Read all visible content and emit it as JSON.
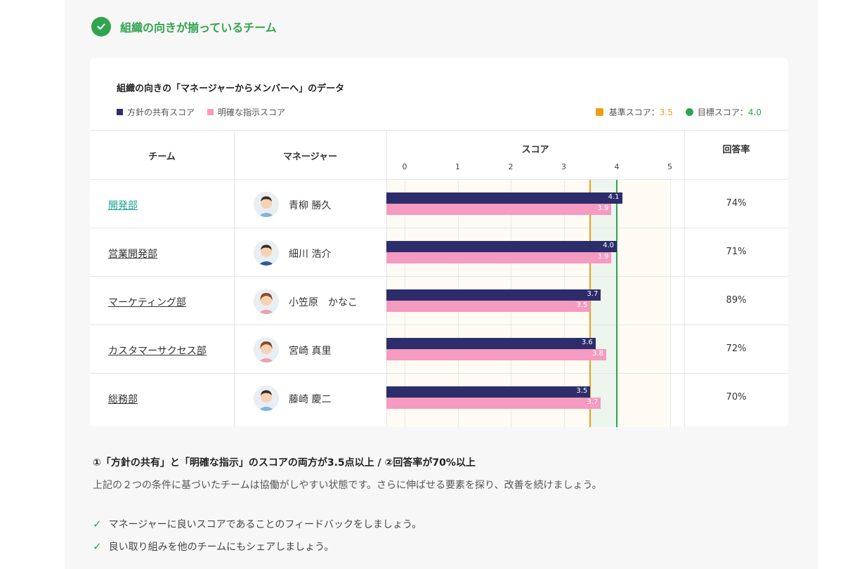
{
  "section": {
    "title": "組織の向きが揃っているチーム",
    "icon": "check-circle-icon",
    "accent": "#2fa44f"
  },
  "card": {
    "title": "組織の向きの「マネージャーからメンバーへ」のデータ",
    "legend": {
      "series1": "方針の共有スコア",
      "series2": "明確な指示スコア",
      "base_label": "基準スコア：",
      "base_value": "3.5",
      "goal_label": "目標スコア：",
      "goal_value": "4.0"
    },
    "colors": {
      "series1": "#2d2d6b",
      "series2": "#f59ac0",
      "base": "#f39c12",
      "goal": "#2fa44f",
      "goal_zone": "#ecf5ee",
      "plot_bg": "#fdfbf3"
    }
  },
  "table": {
    "headers": {
      "team": "チーム",
      "manager": "マネージャー",
      "score": "スコア",
      "rate": "回答率"
    },
    "ticks": [
      "0",
      "1",
      "2",
      "3",
      "4",
      "5"
    ],
    "rows": [
      {
        "team": "開発部",
        "manager": "青柳 勝久",
        "policy": 4.1,
        "policy_label": "4.1",
        "instruction": 3.9,
        "instruction_label": "3.9",
        "rate": "74%",
        "avatar": "male-avatar-icon"
      },
      {
        "team": "営業開発部",
        "manager": "細川 浩介",
        "policy": 4.0,
        "policy_label": "4.0",
        "instruction": 3.9,
        "instruction_label": "3.9",
        "rate": "71%",
        "avatar": "male-suit-avatar-icon"
      },
      {
        "team": "マーケティング部",
        "manager": "小笠原　かなこ",
        "policy": 3.7,
        "policy_label": "3.7",
        "instruction": 3.5,
        "instruction_label": "3.5",
        "rate": "89%",
        "avatar": "female-avatar-icon"
      },
      {
        "team": "カスタマーサクセス部",
        "manager": "宮崎 真里",
        "policy": 3.6,
        "policy_label": "3.6",
        "instruction": 3.8,
        "instruction_label": "3.8",
        "rate": "72%",
        "avatar": "female-avatar-icon"
      },
      {
        "team": "総務部",
        "manager": "藤崎 慶二",
        "policy": 3.5,
        "policy_label": "3.5",
        "instruction": 3.7,
        "instruction_label": "3.7",
        "rate": "70%",
        "avatar": "male-avatar-icon"
      }
    ]
  },
  "chart_data": {
    "type": "bar",
    "categories": [
      "開発部",
      "営業開発部",
      "マーケティング部",
      "カスタマーサクセス部",
      "総務部"
    ],
    "series": [
      {
        "name": "方針の共有スコア",
        "values": [
          4.1,
          4.0,
          3.7,
          3.6,
          3.5
        ]
      },
      {
        "name": "明確な指示スコア",
        "values": [
          3.9,
          3.9,
          3.5,
          3.8,
          3.7
        ]
      }
    ],
    "xlabel": "スコア",
    "xlim": [
      0,
      5
    ],
    "reference_lines": [
      {
        "name": "基準スコア",
        "value": 3.5
      },
      {
        "name": "目標スコア",
        "value": 4.0
      }
    ]
  },
  "conditions": {
    "title": "①「方針の共有」と「明確な指示」のスコアの両方が3.5点以上 / ②回答率が70%以上",
    "description": "上記の２つの条件に基づいたチームは協働がしやすい状態です。さらに伸ばせる要素を探り、改善を続けましょう。",
    "tips": [
      "マネージャーに良いスコアであることのフィードバックをしましょう。",
      "良い取り組みを他のチームにもシェアしましょう。"
    ]
  }
}
